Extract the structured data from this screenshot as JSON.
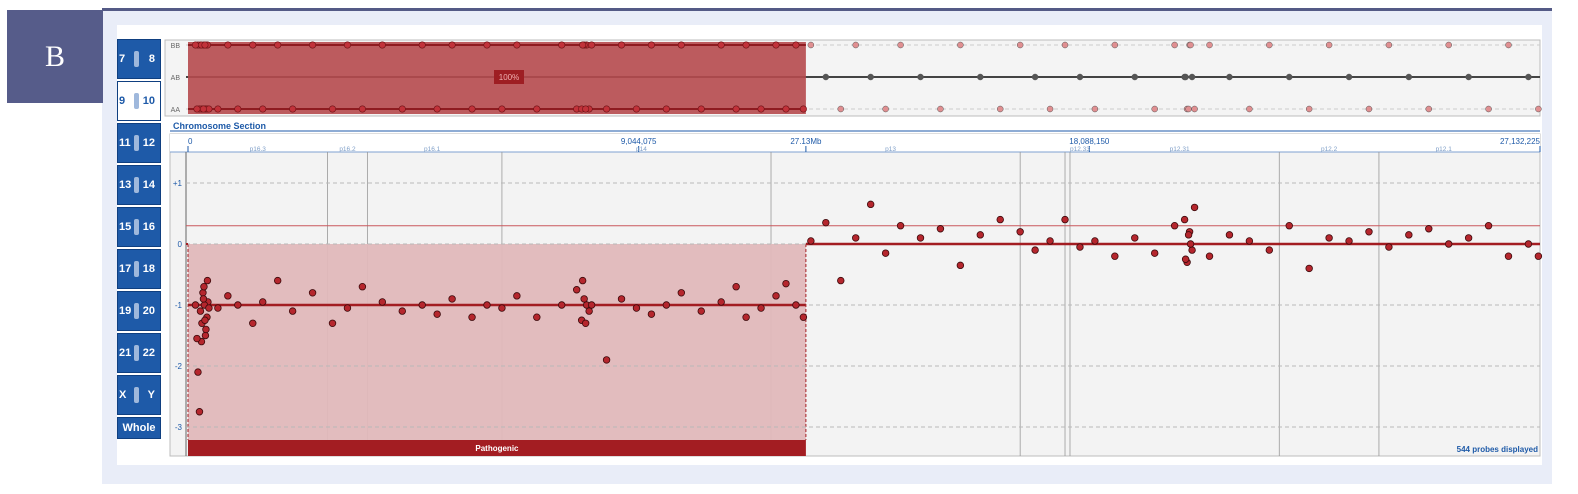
{
  "panel": {
    "label": "B"
  },
  "chromosome_nav": {
    "buttons": [
      {
        "left": "7",
        "right": "8"
      },
      {
        "left": "9",
        "right": "10",
        "active": true
      },
      {
        "left": "11",
        "right": "12"
      },
      {
        "left": "13",
        "right": "14"
      },
      {
        "left": "15",
        "right": "16"
      },
      {
        "left": "17",
        "right": "18"
      },
      {
        "left": "19",
        "right": "20"
      },
      {
        "left": "21",
        "right": "22"
      },
      {
        "left": "X",
        "right": "Y"
      }
    ],
    "whole_label": "Whole"
  },
  "baf_track": {
    "labels": [
      "BB",
      "AB",
      "AA"
    ],
    "region_percent": "100%"
  },
  "section_title": "Chromosome Section",
  "ruler": {
    "position_labels": [
      {
        "text": "0",
        "pos": 0
      },
      {
        "text": "9,044,075",
        "pos": 9044075
      },
      {
        "text": "27.13Mb",
        "pos": 12400000
      },
      {
        "text": "18,088,150",
        "pos": 18088150
      },
      {
        "text": "27,132,225",
        "pos": 27132225
      }
    ],
    "band_labels": [
      {
        "text": "p16.3",
        "pos": 1400000
      },
      {
        "text": "p16.2",
        "pos": 3200000
      },
      {
        "text": "p16.1",
        "pos": 4900000
      },
      {
        "text": "p14",
        "pos": 9100000
      },
      {
        "text": "p13",
        "pos": 14100000
      },
      {
        "text": "p12.33",
        "pos": 17900000
      },
      {
        "text": "p12.31",
        "pos": 19900000
      },
      {
        "text": "p12.2",
        "pos": 22900000
      },
      {
        "text": "p12.1",
        "pos": 25200000
      }
    ],
    "band_boundaries": [
      2800000,
      3600000,
      6300000,
      11700000,
      16700000,
      17600000,
      17700000,
      21900000,
      23900000
    ]
  },
  "log2_axis": {
    "ticks": [
      "+1",
      "0",
      "-1",
      "-2",
      "-3"
    ],
    "ylim": [
      -3.3,
      1.5
    ]
  },
  "segments": {
    "loss_end_pos": 12400000,
    "loss_level": -1.0,
    "normal_level": 0.0,
    "threshold_level": 0.3
  },
  "annotation": {
    "label": "Pathogenic"
  },
  "status": {
    "probes_text": "544 probes displayed"
  },
  "colors": {
    "accent": "#a31d22",
    "nav_blue": "#1e5aa8",
    "frame": "#545a86"
  },
  "chart_data": {
    "type": "scatter",
    "x_unit": "bp",
    "xlim": [
      0,
      27132225
    ],
    "ylim": [
      -3.3,
      1.5
    ],
    "series": [
      {
        "x": [
          300000,
          250000,
          280000,
          320000,
          350000,
          380000,
          400000,
          200000,
          230000,
          330000,
          360000,
          390000,
          420000,
          270000,
          310000,
          340000,
          180000,
          150000,
          600000,
          800000,
          1000000,
          1300000,
          1500000,
          1800000,
          2100000,
          2500000,
          2900000,
          3200000,
          3500000,
          3900000,
          4300000,
          4700000,
          5000000,
          5300000,
          5700000,
          6000000,
          6300000,
          6600000,
          7000000,
          7500000,
          7800000,
          8000000,
          7900000,
          7950000,
          8050000,
          7920000,
          7980000,
          8100000,
          8400000,
          8700000,
          9000000,
          9300000,
          9600000,
          9900000,
          10300000,
          10700000,
          11000000,
          11200000,
          11500000,
          11800000,
          12000000,
          12200000,
          12350000
        ],
        "y": [
          -0.8,
          -1.1,
          -1.3,
          -0.7,
          -1.5,
          -1.2,
          -0.95,
          -2.1,
          -2.75,
          -1.0,
          -1.4,
          -0.6,
          -1.05,
          -1.6,
          -0.9,
          -1.25,
          -1.55,
          -1.0,
          -1.05,
          -0.85,
          -1.0,
          -1.3,
          -0.95,
          -0.6,
          -1.1,
          -0.8,
          -1.3,
          -1.05,
          -0.7,
          -0.95,
          -1.1,
          -1.0,
          -1.15,
          -0.9,
          -1.2,
          -1.0,
          -1.05,
          -0.85,
          -1.2,
          -1.0,
          -0.75,
          -1.0,
          -1.25,
          -0.9,
          -1.1,
          -0.6,
          -1.3,
          -1.0,
          -1.9,
          -0.9,
          -1.05,
          -1.15,
          -1.0,
          -0.8,
          -1.1,
          -0.95,
          -0.7,
          -1.2,
          -1.05,
          -0.85,
          -0.65,
          -1.0,
          -1.2
        ]
      },
      {
        "x": [
          12500000,
          12800000,
          13100000,
          13400000,
          13700000,
          14000000,
          14300000,
          14700000,
          15100000,
          15500000,
          15900000,
          16300000,
          16700000,
          17000000,
          17300000,
          17600000,
          17900000,
          18200000,
          18600000,
          19000000,
          19400000,
          19800000,
          20000000,
          20050000,
          20100000,
          20150000,
          20080000,
          20120000,
          20020000,
          20200000,
          20500000,
          20900000,
          21300000,
          21700000,
          22100000,
          22500000,
          22900000,
          23300000,
          23700000,
          24100000,
          24500000,
          24900000,
          25300000,
          25700000,
          26100000,
          26500000,
          26900000,
          27100000
        ],
        "y": [
          0.05,
          0.35,
          -0.6,
          0.1,
          0.65,
          -0.15,
          0.3,
          0.1,
          0.25,
          -0.35,
          0.15,
          0.4,
          0.2,
          -0.1,
          0.05,
          0.4,
          -0.05,
          0.05,
          -0.2,
          0.1,
          -0.15,
          0.3,
          0.4,
          -0.3,
          0.2,
          -0.1,
          0.15,
          0.0,
          -0.25,
          0.6,
          -0.2,
          0.15,
          0.05,
          -0.1,
          0.3,
          -0.4,
          0.1,
          0.05,
          0.2,
          -0.05,
          0.15,
          0.25,
          0.0,
          0.1,
          0.3,
          -0.2,
          0.0,
          -0.2
        ]
      }
    ]
  }
}
